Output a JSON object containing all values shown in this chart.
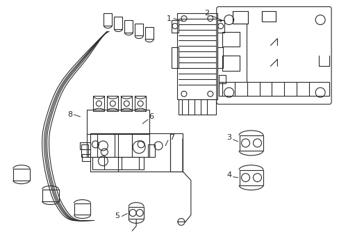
{
  "bg_color": "#ffffff",
  "line_color": "#2a2a2a",
  "line_width": 0.8,
  "label_color": "#000000",
  "label_fontsize": 8,
  "fig_width": 4.89,
  "fig_height": 3.6,
  "dpi": 100,
  "xlim": [
    0,
    489
  ],
  "ylim": [
    0,
    360
  ]
}
